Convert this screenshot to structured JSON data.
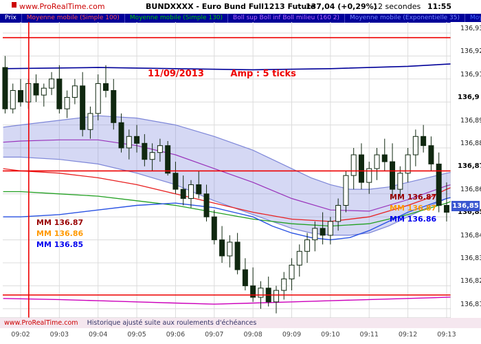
{
  "header": {
    "site": "www.ProRealTime.com",
    "title": "BUNDXXXX - Euro Bund Full1213 Future",
    "price": "137,04 (+0,29%)",
    "timeframe": "12 secondes",
    "clock": "11:55"
  },
  "legend": {
    "items": [
      {
        "label": "Prix",
        "color": "#ffffff"
      },
      {
        "label": "Moyenne mobile (Simple 100)",
        "color": "#ff5050"
      },
      {
        "label": "Moyenne mobile (Simple 130)",
        "color": "#00cc00"
      },
      {
        "label": "Boll sup Boll inf Boll milieu (160 2)",
        "color": "#bb66ff"
      },
      {
        "label": "Moyenne mobile (Exponentielle 35)",
        "color": "#7788ff"
      },
      {
        "label": "Moyenn",
        "color": "#4466ff"
      }
    ]
  },
  "footer": {
    "site": "www.ProRealTime.com",
    "note": "Historique ajusté suite aux roulements d'échéances"
  },
  "annotations": {
    "date": "11/09/2013",
    "amp": "Amp : 5 ticks",
    "price_badge": "136,85",
    "left_mm": [
      {
        "text": "MM 136.87",
        "color": "#990000"
      },
      {
        "text": "MM 136.86",
        "color": "#ff9900"
      },
      {
        "text": "MM 136.85",
        "color": "#0000ee"
      }
    ],
    "right_mm": [
      {
        "text": "MM 136.87",
        "color": "#990000"
      },
      {
        "text": "MM 136.87",
        "color": "#ff9900"
      },
      {
        "text": "MM 136.86",
        "color": "#0000ee"
      }
    ]
  },
  "chart_data": {
    "type": "candlestick",
    "title": "Euro Bund Full1213 Future, 12-second bars",
    "interval": "12s",
    "badge_price": 136.8545,
    "colors": {
      "grid": "#dcdcdc",
      "candle": "#102810",
      "alert": "#ee0000"
    },
    "x_axis": {
      "labels": [
        "09:02",
        "09:03",
        "09:04",
        "09:05",
        "09:06",
        "09:07",
        "09:08",
        "09:09",
        "09:10",
        "09:11",
        "09:12",
        "09:13"
      ]
    },
    "y_axis": {
      "ticks": [
        {
          "label": "136,93",
          "price": 136.93,
          "bold": false
        },
        {
          "label": "136,92",
          "price": 136.92,
          "bold": false
        },
        {
          "label": "136,91",
          "price": 136.91,
          "bold": false
        },
        {
          "label": "136,9",
          "price": 136.9,
          "bold": true
        },
        {
          "label": "136,89",
          "price": 136.89,
          "bold": false
        },
        {
          "label": "136,88",
          "price": 136.88,
          "bold": false
        },
        {
          "label": "136,87",
          "price": 136.87,
          "bold": true
        },
        {
          "label": "136,86",
          "price": 136.86,
          "bold": false
        },
        {
          "label": "136,85",
          "price": 136.85,
          "bold": true
        },
        {
          "label": "136,84",
          "price": 136.84,
          "bold": false
        },
        {
          "label": "136,83",
          "price": 136.83,
          "bold": false
        },
        {
          "label": "136,82",
          "price": 136.82,
          "bold": false
        },
        {
          "label": "136,81",
          "price": 136.81,
          "bold": false
        }
      ]
    },
    "red_levels": [
      136.928,
      136.87,
      136.816
    ],
    "red_vertical_t": 0.21,
    "candles": {
      "start_t": -0.4,
      "step_t": 0.2,
      "ohlc": [
        [
          136.915,
          136.92,
          136.895,
          136.897
        ],
        [
          136.897,
          136.908,
          136.895,
          136.905
        ],
        [
          136.905,
          136.91,
          136.898,
          136.9
        ],
        [
          136.9,
          136.91,
          136.897,
          136.908
        ],
        [
          136.908,
          136.912,
          136.9,
          136.903
        ],
        [
          136.903,
          136.908,
          136.898,
          136.906
        ],
        [
          136.906,
          136.913,
          136.903,
          136.91
        ],
        [
          136.91,
          136.916,
          136.895,
          136.897
        ],
        [
          136.897,
          136.905,
          136.893,
          136.902
        ],
        [
          136.902,
          136.91,
          136.899,
          136.907
        ],
        [
          136.907,
          136.913,
          136.885,
          136.888
        ],
        [
          136.888,
          136.898,
          136.884,
          136.895
        ],
        [
          136.895,
          136.912,
          136.892,
          136.908
        ],
        [
          136.908,
          136.916,
          136.902,
          136.905
        ],
        [
          136.905,
          136.91,
          136.888,
          136.891
        ],
        [
          136.891,
          136.895,
          136.878,
          136.88
        ],
        [
          136.88,
          136.888,
          136.875,
          136.885
        ],
        [
          136.885,
          136.89,
          136.878,
          136.882
        ],
        [
          136.882,
          136.886,
          136.872,
          136.875
        ],
        [
          136.875,
          136.882,
          136.87,
          136.878
        ],
        [
          136.878,
          136.884,
          136.874,
          136.881
        ],
        [
          136.881,
          136.883,
          136.868,
          136.869
        ],
        [
          136.869,
          136.874,
          136.86,
          136.862
        ],
        [
          136.862,
          136.868,
          136.855,
          136.858
        ],
        [
          136.858,
          136.866,
          136.854,
          136.864
        ],
        [
          136.864,
          136.87,
          136.858,
          136.86
        ],
        [
          136.86,
          136.864,
          136.848,
          136.85
        ],
        [
          136.85,
          136.853,
          136.838,
          136.84
        ],
        [
          136.84,
          136.846,
          136.83,
          136.833
        ],
        [
          136.833,
          136.842,
          136.828,
          136.839
        ],
        [
          136.839,
          136.843,
          136.825,
          136.827
        ],
        [
          136.827,
          136.832,
          136.818,
          136.82
        ],
        [
          136.82,
          136.828,
          136.813,
          136.815
        ],
        [
          136.815,
          136.822,
          136.81,
          136.819
        ],
        [
          136.819,
          136.824,
          136.811,
          136.813
        ],
        [
          136.813,
          136.82,
          136.808,
          136.818
        ],
        [
          136.818,
          136.826,
          136.814,
          136.823
        ],
        [
          136.823,
          136.832,
          136.818,
          136.829
        ],
        [
          136.829,
          136.838,
          136.824,
          136.835
        ],
        [
          136.835,
          136.843,
          136.83,
          136.84
        ],
        [
          136.84,
          136.848,
          136.835,
          136.845
        ],
        [
          136.845,
          136.852,
          136.838,
          136.842
        ],
        [
          136.842,
          136.85,
          136.838,
          136.848
        ],
        [
          136.848,
          136.858,
          136.844,
          136.855
        ],
        [
          136.855,
          136.87,
          136.852,
          136.868
        ],
        [
          136.868,
          136.88,
          136.862,
          136.877
        ],
        [
          136.877,
          136.882,
          136.862,
          136.865
        ],
        [
          136.865,
          136.874,
          136.86,
          136.871
        ],
        [
          136.871,
          136.88,
          136.866,
          136.877
        ],
        [
          136.877,
          136.884,
          136.87,
          136.874
        ],
        [
          136.874,
          136.882,
          136.858,
          136.862
        ],
        [
          136.862,
          136.872,
          136.858,
          136.869
        ],
        [
          136.869,
          136.88,
          136.865,
          136.877
        ],
        [
          136.877,
          136.888,
          136.872,
          136.885
        ],
        [
          136.885,
          136.89,
          136.878,
          136.881
        ],
        [
          136.881,
          136.885,
          136.87,
          136.873
        ],
        [
          136.873,
          136.878,
          136.852,
          136.855
        ],
        [
          136.855,
          136.865,
          136.848,
          136.852
        ]
      ]
    },
    "band": {
      "name": "bollinger-band",
      "fill": "rgba(125,135,220,0.32)",
      "edge_color": "#7d86d8",
      "sup": [
        [
          -0.45,
          136.889
        ],
        [
          0,
          136.89
        ],
        [
          1,
          136.892
        ],
        [
          2,
          136.894
        ],
        [
          3,
          136.893
        ],
        [
          4,
          136.89
        ],
        [
          5,
          136.885
        ],
        [
          6,
          136.879
        ],
        [
          6.5,
          136.875
        ],
        [
          7,
          136.871
        ],
        [
          7.5,
          136.867
        ],
        [
          8,
          136.864
        ],
        [
          8.5,
          136.862
        ],
        [
          9,
          136.862
        ],
        [
          9.5,
          136.863
        ],
        [
          10,
          136.865
        ],
        [
          10.5,
          136.867
        ],
        [
          11,
          136.869
        ],
        [
          11.6,
          136.871
        ]
      ],
      "inf": [
        [
          -0.45,
          136.876
        ],
        [
          0,
          136.876
        ],
        [
          1,
          136.875
        ],
        [
          2,
          136.873
        ],
        [
          3,
          136.869
        ],
        [
          4,
          136.864
        ],
        [
          5,
          136.857
        ],
        [
          6,
          136.851
        ],
        [
          6.5,
          136.848
        ],
        [
          7,
          136.845
        ],
        [
          7.5,
          136.843
        ],
        [
          8,
          136.842
        ],
        [
          8.5,
          136.842
        ],
        [
          9,
          136.843
        ],
        [
          9.5,
          136.846
        ],
        [
          10,
          136.85
        ],
        [
          10.5,
          136.854
        ],
        [
          11,
          136.858
        ],
        [
          11.6,
          136.861
        ]
      ]
    },
    "lines": [
      {
        "name": "boll-milieu",
        "color": "#9933bb",
        "width": 1.2,
        "points": [
          [
            -0.45,
            136.8825
          ],
          [
            0,
            136.883
          ],
          [
            1,
            136.8835
          ],
          [
            2,
            136.8835
          ],
          [
            3,
            136.881
          ],
          [
            4,
            136.877
          ],
          [
            5,
            136.871
          ],
          [
            6,
            136.865
          ],
          [
            7,
            136.858
          ],
          [
            8,
            136.853
          ],
          [
            9,
            136.8525
          ],
          [
            10,
            136.8575
          ],
          [
            11,
            136.8635
          ],
          [
            11.6,
            136.866
          ]
        ]
      },
      {
        "name": "mm-long-top",
        "color": "#000099",
        "width": 1.6,
        "points": [
          [
            -0.45,
            136.9145
          ],
          [
            2,
            136.915
          ],
          [
            4,
            136.9145
          ],
          [
            6,
            136.914
          ],
          [
            8,
            136.9145
          ],
          [
            10,
            136.9155
          ],
          [
            11.6,
            136.917
          ]
        ]
      },
      {
        "name": "mm-long-bottom",
        "color": "#cc00bb",
        "width": 1.4,
        "points": [
          [
            -0.45,
            136.8145
          ],
          [
            1,
            136.814
          ],
          [
            2,
            136.8135
          ],
          [
            3,
            136.813
          ],
          [
            4,
            136.8125
          ],
          [
            5,
            136.812
          ],
          [
            6,
            136.8125
          ],
          [
            7,
            136.813
          ],
          [
            8,
            136.8135
          ],
          [
            9,
            136.814
          ],
          [
            10,
            136.8145
          ],
          [
            11,
            136.815
          ],
          [
            11.6,
            136.8155
          ]
        ]
      },
      {
        "name": "mm-simple-100",
        "color": "#e82020",
        "width": 1.3,
        "points": [
          [
            -0.45,
            136.871
          ],
          [
            0,
            136.87
          ],
          [
            1,
            136.869
          ],
          [
            2,
            136.867
          ],
          [
            3,
            136.864
          ],
          [
            4,
            136.86
          ],
          [
            5,
            136.856
          ],
          [
            6,
            136.852
          ],
          [
            7,
            136.849
          ],
          [
            8,
            136.848
          ],
          [
            9,
            136.85
          ],
          [
            10,
            136.855
          ],
          [
            10.5,
            136.858
          ],
          [
            11,
            136.862
          ],
          [
            11.6,
            136.866
          ]
        ]
      },
      {
        "name": "mm-simple-130",
        "color": "#22a022",
        "width": 1.3,
        "points": [
          [
            -0.45,
            136.861
          ],
          [
            0,
            136.861
          ],
          [
            1,
            136.86
          ],
          [
            2,
            136.859
          ],
          [
            3,
            136.857
          ],
          [
            4,
            136.855
          ],
          [
            5,
            136.852
          ],
          [
            6,
            136.849
          ],
          [
            7,
            136.847
          ],
          [
            8,
            136.846
          ],
          [
            9,
            136.847
          ],
          [
            10,
            136.851
          ],
          [
            11,
            136.856
          ],
          [
            11.6,
            136.86
          ]
        ]
      },
      {
        "name": "mm-exponentielle-35",
        "color": "#2952e3",
        "width": 1.4,
        "points": [
          [
            -0.45,
            136.85
          ],
          [
            0,
            136.85
          ],
          [
            1,
            136.851
          ],
          [
            2,
            136.853
          ],
          [
            3,
            136.855
          ],
          [
            4,
            136.856
          ],
          [
            5,
            136.854
          ],
          [
            5.5,
            136.852
          ],
          [
            6,
            136.85
          ],
          [
            6.5,
            136.846
          ],
          [
            7,
            136.843
          ],
          [
            7.5,
            136.841
          ],
          [
            8,
            136.84
          ],
          [
            8.5,
            136.841
          ],
          [
            9,
            136.844
          ],
          [
            9.5,
            136.848
          ],
          [
            10,
            136.852
          ],
          [
            10.5,
            136.855
          ],
          [
            11,
            136.858
          ],
          [
            11.6,
            136.86
          ]
        ]
      }
    ]
  }
}
